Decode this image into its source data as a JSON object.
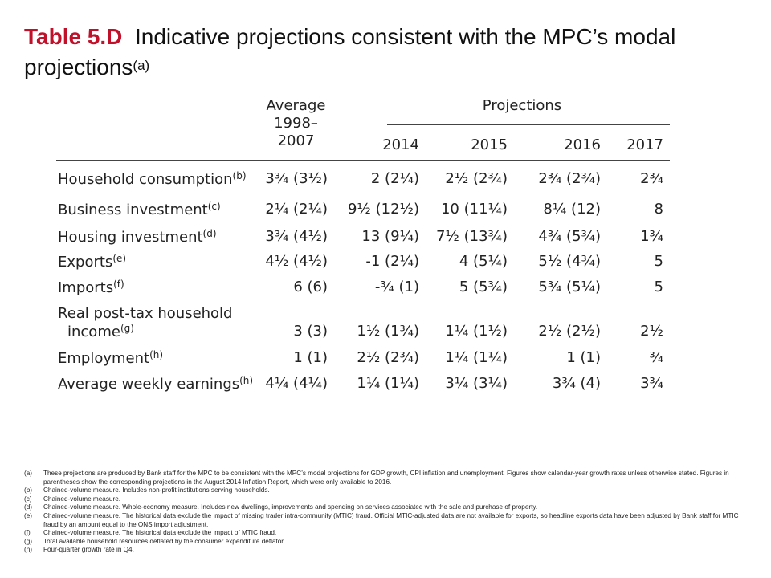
{
  "title": {
    "tag": "Table 5.D",
    "text": "Indicative projections consistent with the MPC’s modal projections",
    "sup": "(a)"
  },
  "header": {
    "average_line1": "Average",
    "average_line2": "1998–",
    "average_line3": "2007",
    "projections": "Projections",
    "years": [
      "2014",
      "2015",
      "2016",
      "2017"
    ]
  },
  "rows": [
    {
      "label": "Household consumption",
      "sup": "(b)",
      "avg": "3¾ (3½)",
      "v2014": "2 (2¼)",
      "v2015": "2½ (2¾)",
      "v2016": "2¾ (2¾)",
      "v2017": "2¾"
    },
    {
      "label": "Business investment",
      "sup": "(c)",
      "avg": "2¼ (2¼)",
      "v2014": "9½ (12½)",
      "v2015": "10 (11¼)",
      "v2016": "8¼ (12)",
      "v2017": "8"
    },
    {
      "label": "Housing investment",
      "sup": "(d)",
      "avg": "3¾ (4½)",
      "v2014": "13 (9¼)",
      "v2015": "7½ (13¾)",
      "v2016": "4¾ (5¾)",
      "v2017": "1¾"
    },
    {
      "label": "Exports",
      "sup": "(e)",
      "avg": "4½ (4½)",
      "v2014": "-1 (2¼)",
      "v2015": "4 (5¼)",
      "v2016": "5½ (4¾)",
      "v2017": "5"
    },
    {
      "label": "Imports",
      "sup": "(f)",
      "avg": "6 (6)",
      "v2014": "-¾ (1)",
      "v2015": "5 (5¾)",
      "v2016": "5¾ (5¼)",
      "v2017": "5"
    },
    {
      "label_line1": "Real post-tax household",
      "label": "income",
      "sup": "(g)",
      "avg": "3 (3)",
      "v2014": "1½ (1¾)",
      "v2015": "1¼ (1½)",
      "v2016": "2½ (2½)",
      "v2017": "2½"
    },
    {
      "label": "Employment",
      "sup": "(h)",
      "avg": "1 (1)",
      "v2014": "2½ (2¾)",
      "v2015": "1¼ (1¼)",
      "v2016": "1 (1)",
      "v2017": "¾"
    },
    {
      "label": "Average weekly earnings",
      "sup": "(h)",
      "avg": "4¼ (4¼)",
      "v2014": "1¼ (1¼)",
      "v2015": "3¼ (3¼)",
      "v2016": "3¾ (4)",
      "v2017": "3¾"
    }
  ],
  "notes": [
    {
      "k": "(a)",
      "t": "These projections are produced by Bank staff for the MPC to be consistent with the MPC’s modal projections for GDP growth, CPI inflation and unemployment. Figures show calendar-year growth rates unless otherwise stated. Figures in parentheses show the corresponding projections in the August 2014 Inflation Report, which were only available to 2016."
    },
    {
      "k": "(b)",
      "t": "Chained-volume measure. Includes non-profit institutions serving households."
    },
    {
      "k": "(c)",
      "t": "Chained-volume measure."
    },
    {
      "k": "(d)",
      "t": "Chained-volume measure. Whole-economy measure. Includes new dwellings, improvements and spending on services associated with the sale and purchase of property."
    },
    {
      "k": "(e)",
      "t": "Chained-volume measure. The historical data exclude the impact of missing trader intra-community (MTIC) fraud. Official MTIC-adjusted data are not available for exports, so headline exports data have been adjusted by Bank staff for MTIC fraud by an amount equal to the ONS import adjustment."
    },
    {
      "k": "(f)",
      "t": "Chained-volume measure. The historical data exclude the impact of MTIC fraud."
    },
    {
      "k": "(g)",
      "t": "Total available household resources deflated by the consumer expenditure deflator."
    },
    {
      "k": "(h)",
      "t": "Four-quarter growth rate in Q4."
    }
  ]
}
